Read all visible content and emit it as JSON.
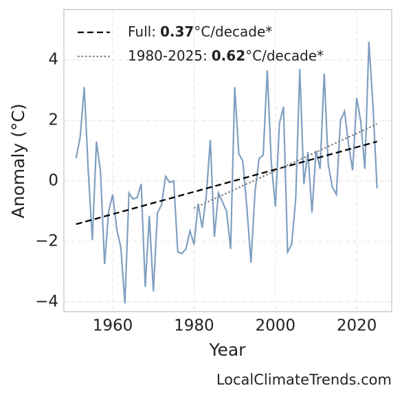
{
  "chart_data": {
    "type": "line",
    "xlabel": "Year",
    "ylabel": "Anomaly (°C)",
    "watermark": "LocalClimateTrends.com",
    "x": [
      1951,
      1952,
      1953,
      1954,
      1955,
      1956,
      1957,
      1958,
      1959,
      1960,
      1961,
      1962,
      1963,
      1964,
      1965,
      1966,
      1967,
      1968,
      1969,
      1970,
      1971,
      1972,
      1973,
      1974,
      1975,
      1976,
      1977,
      1978,
      1979,
      1980,
      1981,
      1982,
      1983,
      1984,
      1985,
      1986,
      1987,
      1988,
      1989,
      1990,
      1991,
      1992,
      1993,
      1994,
      1995,
      1996,
      1997,
      1998,
      1999,
      2000,
      2001,
      2002,
      2003,
      2004,
      2005,
      2006,
      2007,
      2008,
      2009,
      2010,
      2011,
      2012,
      2013,
      2014,
      2015,
      2016,
      2017,
      2018,
      2019,
      2020,
      2021,
      2022,
      2023,
      2024,
      2025
    ],
    "series": [
      {
        "color": "#7f9fc0",
        "values": [
          0.75,
          1.45,
          3.1,
          0.3,
          -1.95,
          1.3,
          0.3,
          -2.75,
          -1.0,
          -0.45,
          -1.6,
          -2.2,
          -4.05,
          -0.4,
          -0.6,
          -0.55,
          -0.1,
          -3.5,
          -1.15,
          -3.65,
          -1.05,
          -0.8,
          0.15,
          -0.05,
          0.0,
          -2.35,
          -2.4,
          -2.25,
          -1.65,
          -2.1,
          -0.75,
          -1.55,
          -0.5,
          1.35,
          -1.85,
          -0.4,
          -0.7,
          -1.0,
          -2.25,
          3.1,
          0.9,
          0.65,
          -0.9,
          -2.7,
          -0.35,
          0.75,
          0.85,
          3.65,
          0.6,
          -0.85,
          1.9,
          2.45,
          -2.35,
          -2.1,
          -0.6,
          3.7,
          -0.1,
          0.95,
          -1.05,
          1.0,
          0.4,
          3.55,
          0.55,
          -0.2,
          -0.45,
          2.0,
          2.3,
          1.2,
          0.35,
          2.75,
          1.95,
          0.4,
          4.6,
          2.5,
          -0.25
        ]
      },
      {
        "label": "Full:",
        "rate": 0.37,
        "unit": "°C/decade*",
        "color": "#000000",
        "style": "dashed",
        "x": [
          1951,
          2025
        ],
        "values": [
          -1.43,
          1.3
        ]
      },
      {
        "label": "1980-2025:",
        "rate": 0.62,
        "unit": "°C/decade*",
        "color": "#808080",
        "style": "dotted",
        "x": [
          1980,
          2025
        ],
        "values": [
          -0.9,
          1.88
        ]
      }
    ],
    "xlim": [
      1948,
      2028.6
    ],
    "ylim": [
      -4.32,
      5.66
    ],
    "xticks": [
      1960,
      1980,
      2000,
      2020
    ],
    "yticks": [
      {
        "value": -4,
        "label": "−4"
      },
      {
        "value": -2,
        "label": "−2"
      },
      0,
      2,
      4
    ],
    "grid": true
  }
}
